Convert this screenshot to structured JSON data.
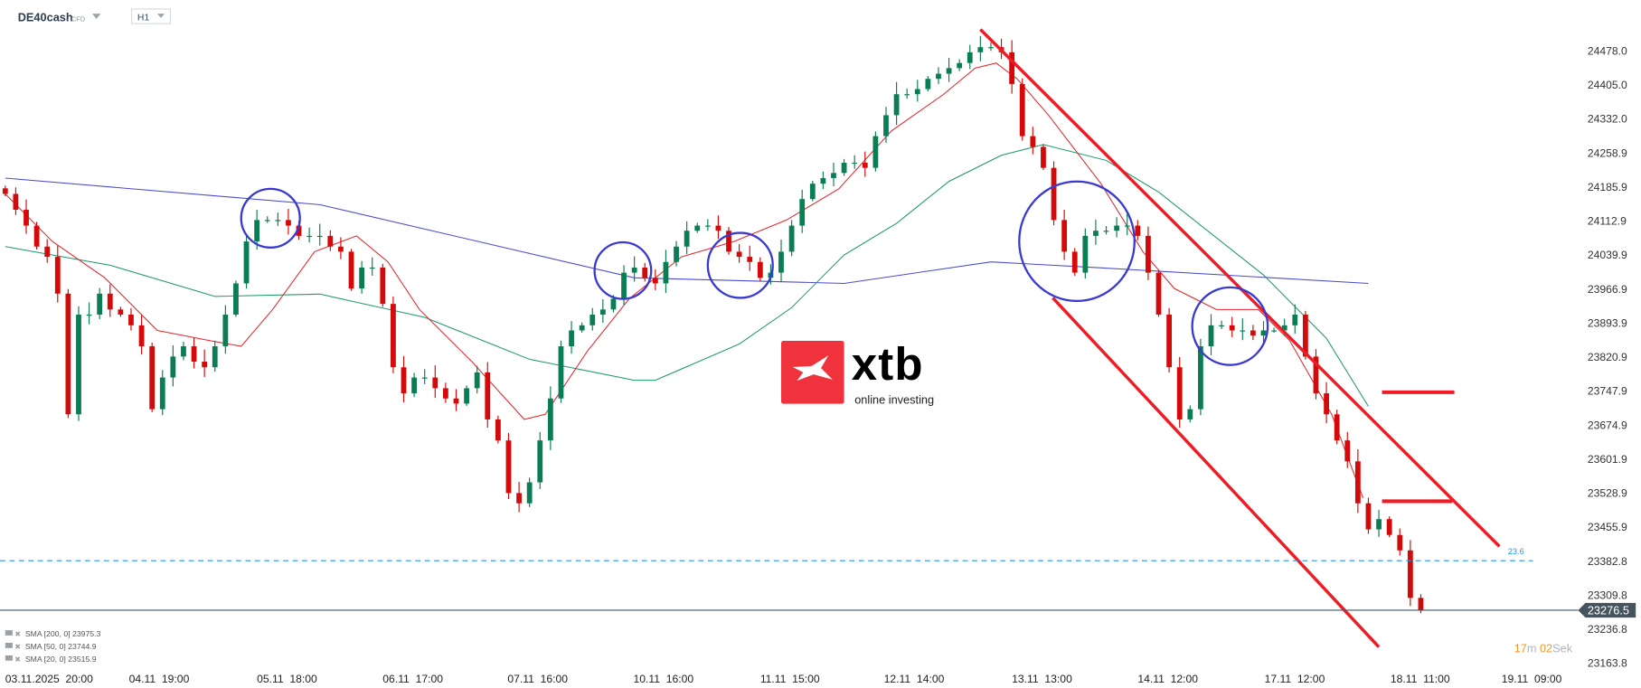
{
  "header": {
    "symbol": "DE40cash",
    "symbol_type": "CFD",
    "timeframe": "H1"
  },
  "logo": {
    "brand": "xtb",
    "tagline": "online investing",
    "color": "#f0323c"
  },
  "indicators": [
    {
      "label": "SMA [200,  0] 23975.3",
      "color": "#4b4bd0"
    },
    {
      "label": "SMA [50,  0] 23744.9",
      "color": "#1a9a6a"
    },
    {
      "label": "SMA [20,  0] 23515.9",
      "color": "#e0282e"
    }
  ],
  "countdown": {
    "minutes": "17",
    "minutes_unit": "m",
    "seconds": "02",
    "seconds_unit": "Sek"
  },
  "fib_level": {
    "label": "23.6",
    "price": 23382.8,
    "color": "#2196f3"
  },
  "chart_data": {
    "type": "candlestick",
    "instrument": "DE40cash",
    "timeframe": "H1",
    "ylim": [
      23163.8,
      24478.0
    ],
    "y_ticks": [
      "24478.0",
      "24405.0",
      "24332.0",
      "24258.9",
      "24185.9",
      "24112.9",
      "24039.9",
      "23966.9",
      "23893.9",
      "23820.9",
      "23747.9",
      "23674.9",
      "23601.9",
      "23528.9",
      "23455.9",
      "23382.8",
      "23309.8",
      "23236.8",
      "23163.8"
    ],
    "x_ticks": [
      "03.11.2025  20:00",
      "04.11  19:00",
      "05.11  18:00",
      "06.11  17:00",
      "07.11  16:00",
      "10.11  16:00",
      "11.11  15:00",
      "12.11  14:00",
      "13.11  13:00",
      "14.11  12:00",
      "17.11  12:00",
      "18.11  11:00",
      "19.11  09:00"
    ],
    "last_price": "23276.5",
    "colors": {
      "up": "#0a7d55",
      "down": "#d40a0a"
    },
    "closes": [
      24170,
      24136,
      24102,
      24057,
      24035,
      23956,
      23697,
      23911,
      23911,
      23956,
      23922,
      23911,
      23888,
      23843,
      23708,
      23776,
      23821,
      23843,
      23810,
      23798,
      23843,
      23911,
      23978,
      24068,
      24114,
      24114,
      24114,
      24102,
      24080,
      24080,
      24080,
      24057,
      24046,
      23967,
      24012,
      24012,
      23934,
      23798,
      23742,
      23776,
      23776,
      23753,
      23731,
      23720,
      23753,
      23787,
      23686,
      23641,
      23528,
      23506,
      23551,
      23641,
      23731,
      23843,
      23877,
      23888,
      23911,
      23922,
      23945,
      24001,
      24012,
      23990,
      23978,
      24024,
      24057,
      24091,
      24102,
      24102,
      24091,
      24046,
      24035,
      24024,
      23990,
      24001,
      24046,
      24102,
      24159,
      24192,
      24204,
      24215,
      24237,
      24237,
      24226,
      24294,
      24339,
      24384,
      24384,
      24395,
      24417,
      24428,
      24440,
      24451,
      24474,
      24485,
      24485,
      24474,
      24406,
      24294,
      24271,
      24226,
      24114,
      24046,
      24001,
      24080,
      24091,
      24091,
      24102,
      24102,
      24080,
      24001,
      23911,
      23798,
      23686,
      23708,
      23843,
      23888,
      23888,
      23877,
      23877,
      23866,
      23877,
      23877,
      23888,
      23911,
      23821,
      23742,
      23697,
      23641,
      23596,
      23506,
      23450,
      23472,
      23438,
      23405,
      23303,
      23276.5
    ],
    "sma": [
      {
        "name": "SMA 200",
        "color": "#4b4bd0",
        "points": [
          [
            0,
            24204
          ],
          [
            30,
            24147
          ],
          [
            60,
            23990
          ],
          [
            80,
            23978
          ],
          [
            94,
            24024
          ],
          [
            104,
            24012
          ],
          [
            130,
            23978
          ]
        ]
      },
      {
        "name": "SMA 50",
        "color": "#1a9a6a",
        "points": [
          [
            0,
            24057
          ],
          [
            10,
            24017
          ],
          [
            20,
            23950
          ],
          [
            30,
            23955
          ],
          [
            40,
            23905
          ],
          [
            50,
            23815
          ],
          [
            60,
            23770
          ],
          [
            62,
            23770
          ],
          [
            70,
            23848
          ],
          [
            75,
            23926
          ],
          [
            80,
            24039
          ],
          [
            85,
            24107
          ],
          [
            90,
            24197
          ],
          [
            95,
            24253
          ],
          [
            99,
            24276
          ],
          [
            105,
            24242
          ],
          [
            110,
            24174
          ],
          [
            120,
            23996
          ],
          [
            126,
            23860
          ],
          [
            130,
            23714
          ]
        ]
      },
      {
        "name": "SMA 20",
        "color": "#e0282e",
        "points": [
          [
            0,
            24170
          ],
          [
            4.5,
            24068
          ],
          [
            9.5,
            23990
          ],
          [
            14.5,
            23877
          ],
          [
            19.5,
            23855
          ],
          [
            22.5,
            23843
          ],
          [
            25.5,
            23922
          ],
          [
            29.5,
            24046
          ],
          [
            33.5,
            24080
          ],
          [
            36.5,
            24024
          ],
          [
            39.5,
            23922
          ],
          [
            44.5,
            23810
          ],
          [
            49.5,
            23686
          ],
          [
            51.5,
            23697
          ],
          [
            55.5,
            23832
          ],
          [
            59.5,
            23945
          ],
          [
            64.5,
            24035
          ],
          [
            69.5,
            24068
          ],
          [
            74.5,
            24114
          ],
          [
            79.5,
            24181
          ],
          [
            84.5,
            24305
          ],
          [
            89.5,
            24384
          ],
          [
            92.5,
            24440
          ],
          [
            94.5,
            24451
          ],
          [
            96.5,
            24417
          ],
          [
            99.5,
            24339
          ],
          [
            104.5,
            24192
          ],
          [
            108.5,
            24046
          ],
          [
            111.5,
            23967
          ],
          [
            115.5,
            23922
          ],
          [
            119.5,
            23922
          ],
          [
            122.5,
            23855
          ],
          [
            126.5,
            23697
          ],
          [
            129.5,
            23517
          ]
        ]
      }
    ]
  }
}
